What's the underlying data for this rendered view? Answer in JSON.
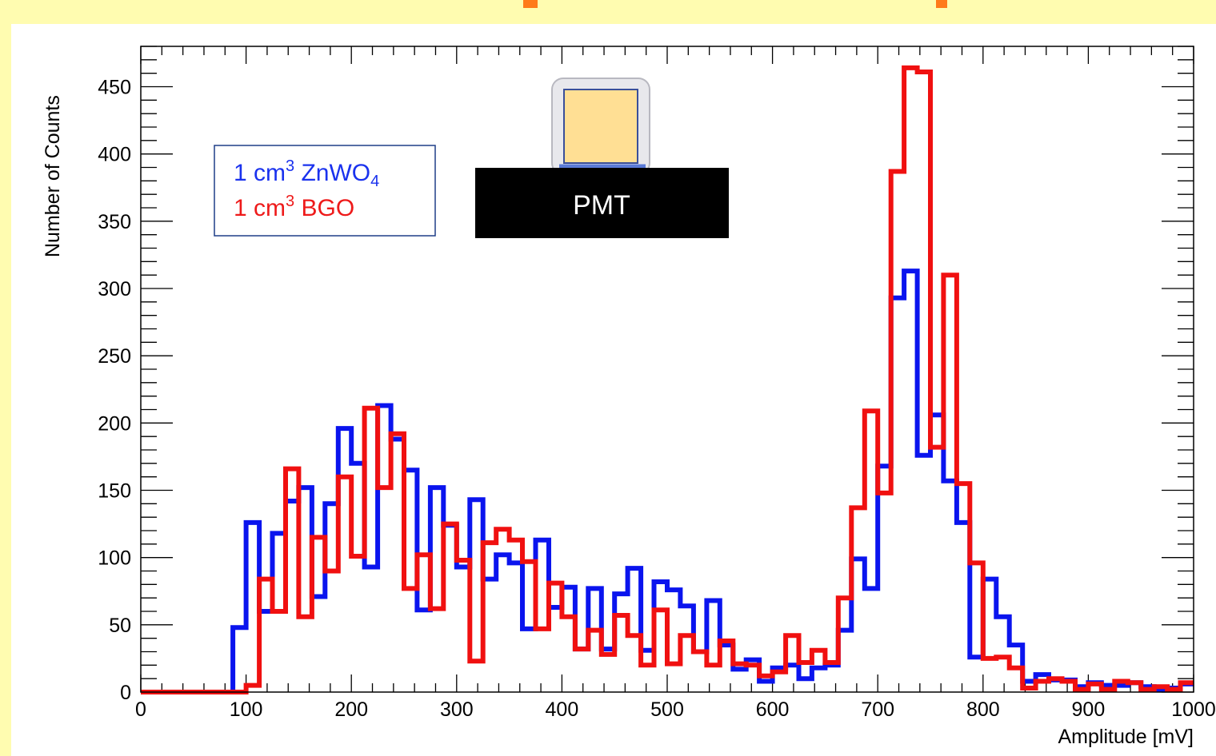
{
  "chart_data": {
    "type": "histogram",
    "xlabel": "Amplitude [mV]",
    "ylabel": "Number of Counts",
    "xlim": [
      0,
      1000
    ],
    "ylim": [
      0,
      480
    ],
    "bin_width": 12.5,
    "x_ticks": [
      "0",
      "100",
      "200",
      "300",
      "400",
      "500",
      "600",
      "700",
      "800",
      "900",
      "1000"
    ],
    "y_ticks": [
      "0",
      "50",
      "100",
      "150",
      "200",
      "250",
      "300",
      "350",
      "400",
      "450"
    ],
    "legend": {
      "line1": {
        "prefix": "1 cm",
        "sup": "3",
        "main": " ZnWO",
        "sub": "4"
      },
      "line2": {
        "prefix": "1 cm",
        "sup": "3",
        "main": " BGO"
      }
    },
    "series": [
      {
        "color": "#0a14ee",
        "values": [
          0,
          0,
          0,
          0,
          0,
          0,
          0,
          48,
          126,
          60,
          118,
          142,
          152,
          71,
          140,
          196,
          170,
          93,
          213,
          188,
          165,
          61,
          152,
          124,
          93,
          143,
          84,
          102,
          96,
          47,
          113,
          63,
          78,
          32,
          77,
          32,
          73,
          92,
          31,
          82,
          76,
          64,
          30,
          68,
          35,
          17,
          24,
          8,
          18,
          20,
          10,
          18,
          20,
          46,
          99,
          77,
          168,
          293,
          313,
          176,
          206,
          157,
          126,
          26,
          84,
          56,
          35,
          8,
          13,
          9,
          9,
          4,
          7,
          5,
          5,
          7,
          4,
          2,
          3,
          6
        ]
      },
      {
        "color": "#f01010",
        "values": [
          0,
          0,
          0,
          0,
          0,
          0,
          0,
          0,
          5,
          84,
          60,
          166,
          56,
          115,
          90,
          160,
          101,
          211,
          152,
          192,
          77,
          102,
          62,
          125,
          98,
          23,
          111,
          121,
          113,
          97,
          47,
          81,
          56,
          32,
          46,
          28,
          57,
          42,
          20,
          61,
          21,
          42,
          30,
          20,
          38,
          21,
          20,
          12,
          15,
          42,
          22,
          31,
          22,
          70,
          137,
          209,
          148,
          387,
          464,
          461,
          182,
          310,
          155,
          96,
          25,
          26,
          18,
          3,
          8,
          10,
          8,
          2,
          6,
          2,
          8,
          7,
          2,
          4,
          2,
          7
        ]
      }
    ],
    "inset": {
      "label": "PMT"
    }
  }
}
